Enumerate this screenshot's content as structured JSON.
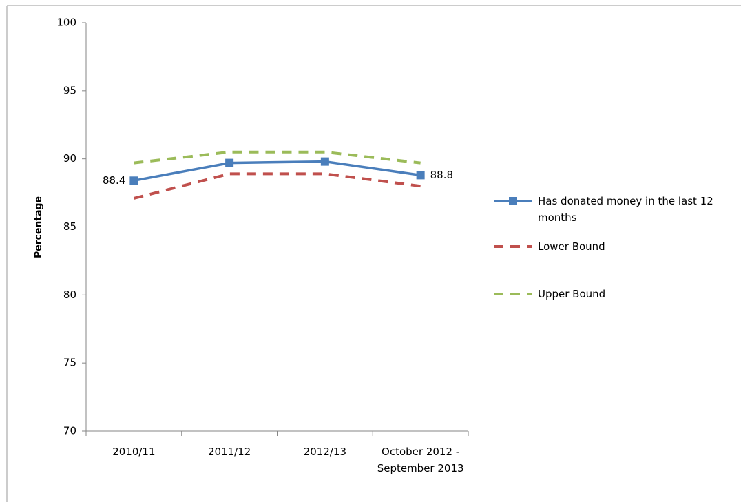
{
  "chart_data": {
    "type": "line",
    "y_label": "Percentage",
    "categories": [
      "2010/11",
      "2011/12",
      "2012/13",
      "October 2012 - September 2013"
    ],
    "series": [
      {
        "name": "Has donated money in the last 12 months",
        "color": "#4a7ebb",
        "style": "solid",
        "marker": "square",
        "values": [
          88.4,
          89.7,
          89.8,
          88.8
        ]
      },
      {
        "name": "Lower Bound",
        "color": "#c0504d",
        "style": "dashed",
        "values": [
          87.1,
          88.9,
          88.9,
          88.0
        ]
      },
      {
        "name": "Upper Bound",
        "color": "#9bbb59",
        "style": "dashed",
        "values": [
          89.7,
          90.5,
          90.5,
          89.7
        ]
      }
    ],
    "ylim": [
      70,
      100
    ],
    "yticks": [
      70,
      75,
      80,
      85,
      90,
      95,
      100
    ],
    "grid": false,
    "legend": "right"
  }
}
